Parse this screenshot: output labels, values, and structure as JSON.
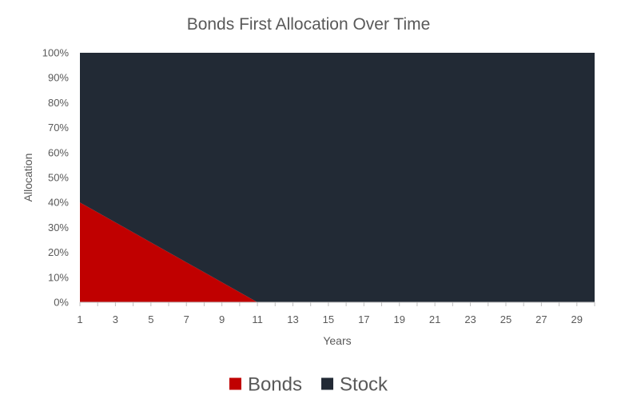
{
  "chart_data": {
    "type": "area",
    "stacked": true,
    "percent_stacked": true,
    "title": "Bonds First Allocation Over Time",
    "xlabel": "Years",
    "ylabel": "Allocation",
    "x_range": [
      1,
      30
    ],
    "x_ticks": [
      "1",
      "3",
      "5",
      "7",
      "9",
      "11",
      "13",
      "15",
      "17",
      "19",
      "21",
      "23",
      "25",
      "27",
      "29"
    ],
    "y_range": [
      0,
      100
    ],
    "y_ticks": [
      "0%",
      "10%",
      "20%",
      "30%",
      "40%",
      "50%",
      "60%",
      "70%",
      "80%",
      "90%",
      "100%"
    ],
    "grid": false,
    "legend_position": "bottom",
    "x": [
      1,
      2,
      3,
      4,
      5,
      6,
      7,
      8,
      9,
      10,
      11,
      12,
      13,
      14,
      15,
      16,
      17,
      18,
      19,
      20,
      21,
      22,
      23,
      24,
      25,
      26,
      27,
      28,
      29,
      30
    ],
    "series": [
      {
        "name": "Bonds",
        "color": "#c00000",
        "values": [
          40,
          36,
          32,
          28,
          24,
          20,
          16,
          12,
          8,
          4,
          0,
          0,
          0,
          0,
          0,
          0,
          0,
          0,
          0,
          0,
          0,
          0,
          0,
          0,
          0,
          0,
          0,
          0,
          0,
          0
        ]
      },
      {
        "name": "Stock",
        "color": "#222a35",
        "values": [
          60,
          64,
          68,
          72,
          76,
          80,
          84,
          88,
          92,
          96,
          100,
          100,
          100,
          100,
          100,
          100,
          100,
          100,
          100,
          100,
          100,
          100,
          100,
          100,
          100,
          100,
          100,
          100,
          100,
          100
        ]
      }
    ]
  }
}
